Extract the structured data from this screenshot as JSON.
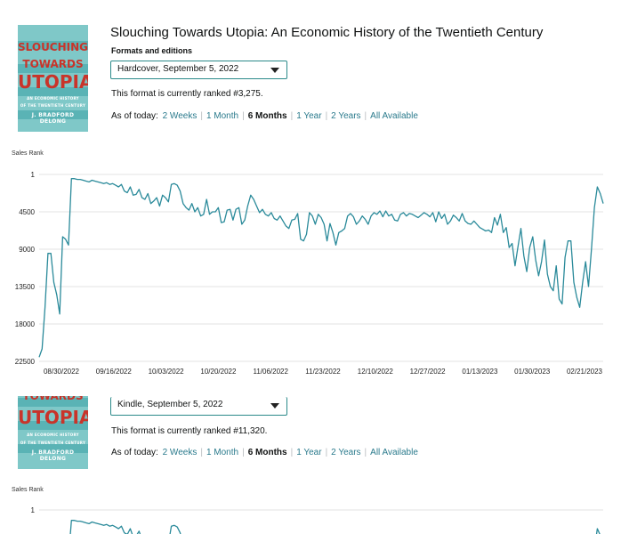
{
  "book": {
    "title": "Slouching Towards Utopia: An Economic History of the Twentieth Century",
    "formats_heading": "Formats and editions",
    "cover_text": {
      "line1": "SLOUCHING",
      "line2": "TOWARDS",
      "line3": "UTOPIA",
      "line4": "AN ECONOMIC HISTORY",
      "line5": "OF THE TWENTIETH CENTURY",
      "line6": "J. BRADFORD DELONG"
    }
  },
  "range_options": [
    "2 Weeks",
    "1 Month",
    "6 Months",
    "1 Year",
    "2 Years",
    "All Available"
  ],
  "range_selected": "6 Months",
  "range_prefix": "As of today:",
  "colors": {
    "line": "#2a8a9a",
    "link": "#2a7a8c",
    "border": "#2b8a8a",
    "grid": "#e3e3e3"
  },
  "editions": [
    {
      "format_select": "Hardcover, September 5, 2022",
      "rank_text": "This format is currently ranked #3,275.",
      "axis_title": "Sales Rank"
    },
    {
      "format_select": "Kindle, September 5, 2022",
      "rank_text": "This format is currently ranked #11,320.",
      "axis_title": "Sales Rank"
    }
  ],
  "chart_data": [
    {
      "type": "line",
      "ylabel": "Sales Rank",
      "ylim": [
        1,
        22500
      ],
      "y_inverted": true,
      "yticks": [
        "1",
        "4500",
        "9000",
        "13500",
        "18000",
        "22500"
      ],
      "xticks": [
        "08/30/2022",
        "09/16/2022",
        "10/03/2022",
        "10/20/2022",
        "11/06/2022",
        "11/23/2022",
        "12/10/2022",
        "12/27/2022",
        "01/13/2023",
        "01/30/2023",
        "02/21/2023"
      ],
      "grid": true,
      "series": [
        {
          "values": [
            22000,
            21000,
            16000,
            9500,
            9500,
            13000,
            14500,
            16800,
            7500,
            7800,
            8500,
            500,
            500,
            600,
            600,
            700,
            800,
            900,
            700,
            800,
            900,
            1000,
            1100,
            1000,
            1200,
            1100,
            1300,
            1500,
            1200,
            2000,
            2200,
            1500,
            2500,
            2400,
            1800,
            2800,
            3000,
            2300,
            3500,
            3200,
            2800,
            3800,
            2500,
            2800,
            3300,
            1200,
            1100,
            1300,
            2000,
            3500,
            4000,
            4300,
            3500,
            4500,
            4000,
            5000,
            4800,
            3000,
            4800,
            4500,
            4500,
            4000,
            5800,
            5700,
            4300,
            4200,
            5500,
            4200,
            4000,
            6000,
            5500,
            3800,
            2500,
            3000,
            3800,
            4600,
            4200,
            4800,
            5000,
            4600,
            5300,
            5500,
            5000,
            5600,
            6200,
            6500,
            5500,
            5400,
            4700,
            7800,
            8000,
            7200,
            4600,
            5000,
            6000,
            4800,
            5200,
            6000,
            8000,
            5900,
            7000,
            8500,
            7000,
            6800,
            6500,
            5000,
            4700,
            5100,
            6000,
            5600,
            5000,
            5400,
            6000,
            5000,
            4600,
            4800,
            4400,
            5100,
            4400,
            5000,
            4800,
            5500,
            5600,
            4800,
            4600,
            5000,
            4700,
            4800,
            5000,
            5200,
            4900,
            4600,
            4800,
            5100,
            4600,
            5700,
            4500,
            5300,
            4800,
            6000,
            5600,
            4900,
            5200,
            5600,
            4700,
            5600,
            5900,
            6000,
            5600,
            6000,
            6400,
            6600,
            6800,
            6700,
            7000,
            5200,
            6100,
            4800,
            7000,
            6400,
            8800,
            8300,
            11000,
            8700,
            6500,
            9800,
            11700,
            8800,
            7500,
            10300,
            12200,
            10500,
            7900,
            12000,
            13500,
            14000,
            11000,
            15000,
            15600,
            10000,
            8000,
            8000,
            13000,
            14800,
            16000,
            13000,
            10500,
            13500,
            9000,
            4000,
            1500,
            2300,
            3500
          ]
        }
      ]
    },
    {
      "type": "line",
      "ylabel": "Sales Rank",
      "yticks": [
        "1"
      ],
      "partial": true
    }
  ]
}
